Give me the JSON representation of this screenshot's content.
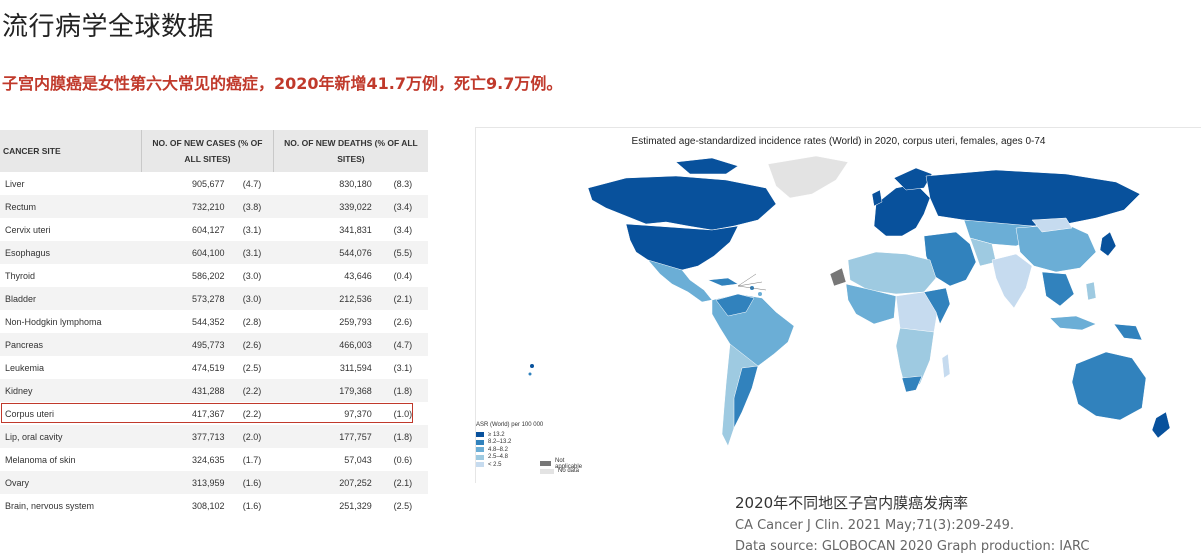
{
  "page": {
    "title": "流行病学全球数据",
    "subtitle": "子宫内膜癌是女性第六大常见的癌症，2020年新增41.7万例，死亡9.7万例。"
  },
  "table": {
    "headers": {
      "site": "CANCER SITE",
      "cases": "NO. OF NEW CASES (% OF ALL SITES)",
      "deaths": "NO. OF NEW DEATHS (% OF ALL SITES)"
    },
    "rows": [
      {
        "site": "Liver",
        "cases": "905,677",
        "cases_pct": "(4.7)",
        "deaths": "830,180",
        "deaths_pct": "(8.3)"
      },
      {
        "site": "Rectum",
        "cases": "732,210",
        "cases_pct": "(3.8)",
        "deaths": "339,022",
        "deaths_pct": "(3.4)"
      },
      {
        "site": "Cervix uteri",
        "cases": "604,127",
        "cases_pct": "(3.1)",
        "deaths": "341,831",
        "deaths_pct": "(3.4)"
      },
      {
        "site": "Esophagus",
        "cases": "604,100",
        "cases_pct": "(3.1)",
        "deaths": "544,076",
        "deaths_pct": "(5.5)"
      },
      {
        "site": "Thyroid",
        "cases": "586,202",
        "cases_pct": "(3.0)",
        "deaths": "43,646",
        "deaths_pct": "(0.4)"
      },
      {
        "site": "Bladder",
        "cases": "573,278",
        "cases_pct": "(3.0)",
        "deaths": "212,536",
        "deaths_pct": "(2.1)"
      },
      {
        "site": "Non-Hodgkin lymphoma",
        "cases": "544,352",
        "cases_pct": "(2.8)",
        "deaths": "259,793",
        "deaths_pct": "(2.6)"
      },
      {
        "site": "Pancreas",
        "cases": "495,773",
        "cases_pct": "(2.6)",
        "deaths": "466,003",
        "deaths_pct": "(4.7)"
      },
      {
        "site": "Leukemia",
        "cases": "474,519",
        "cases_pct": "(2.5)",
        "deaths": "311,594",
        "deaths_pct": "(3.1)"
      },
      {
        "site": "Kidney",
        "cases": "431,288",
        "cases_pct": "(2.2)",
        "deaths": "179,368",
        "deaths_pct": "(1.8)"
      },
      {
        "site": "Corpus uteri",
        "cases": "417,367",
        "cases_pct": "(2.2)",
        "deaths": "97,370",
        "deaths_pct": "(1.0)",
        "highlighted": true
      },
      {
        "site": "Lip, oral cavity",
        "cases": "377,713",
        "cases_pct": "(2.0)",
        "deaths": "177,757",
        "deaths_pct": "(1.8)"
      },
      {
        "site": "Melanoma of skin",
        "cases": "324,635",
        "cases_pct": "(1.7)",
        "deaths": "57,043",
        "deaths_pct": "(0.6)"
      },
      {
        "site": "Ovary",
        "cases": "313,959",
        "cases_pct": "(1.6)",
        "deaths": "207,252",
        "deaths_pct": "(2.1)"
      },
      {
        "site": "Brain, nervous system",
        "cases": "308,102",
        "cases_pct": "(1.6)",
        "deaths": "251,329",
        "deaths_pct": "(2.5)"
      }
    ]
  },
  "map": {
    "title": "Estimated age-standardized incidence rates (World) in 2020, corpus uteri, females, ages 0-74",
    "legend": {
      "title": "ASR (World) per 100 000",
      "items": [
        {
          "label": "≥ 13.2",
          "color": "#08519c"
        },
        {
          "label": "8.2–13.2",
          "color": "#3182bd"
        },
        {
          "label": "4.8–8.2",
          "color": "#6baed6"
        },
        {
          "label": "2.5–4.8",
          "color": "#9ecae1"
        },
        {
          "label": "< 2.5",
          "color": "#c6dbef"
        }
      ],
      "extra": [
        {
          "label": "Not applicable",
          "color": "#777777"
        },
        {
          "label": "No data",
          "color": "#e3e3e3"
        }
      ]
    }
  },
  "caption": {
    "title": "2020年不同地区子宫内膜癌发病率",
    "citation": "CA Cancer J Clin. 2021 May;71(3):209-249.",
    "source": "Data source: GLOBOCAN 2020 Graph production: IARC"
  }
}
